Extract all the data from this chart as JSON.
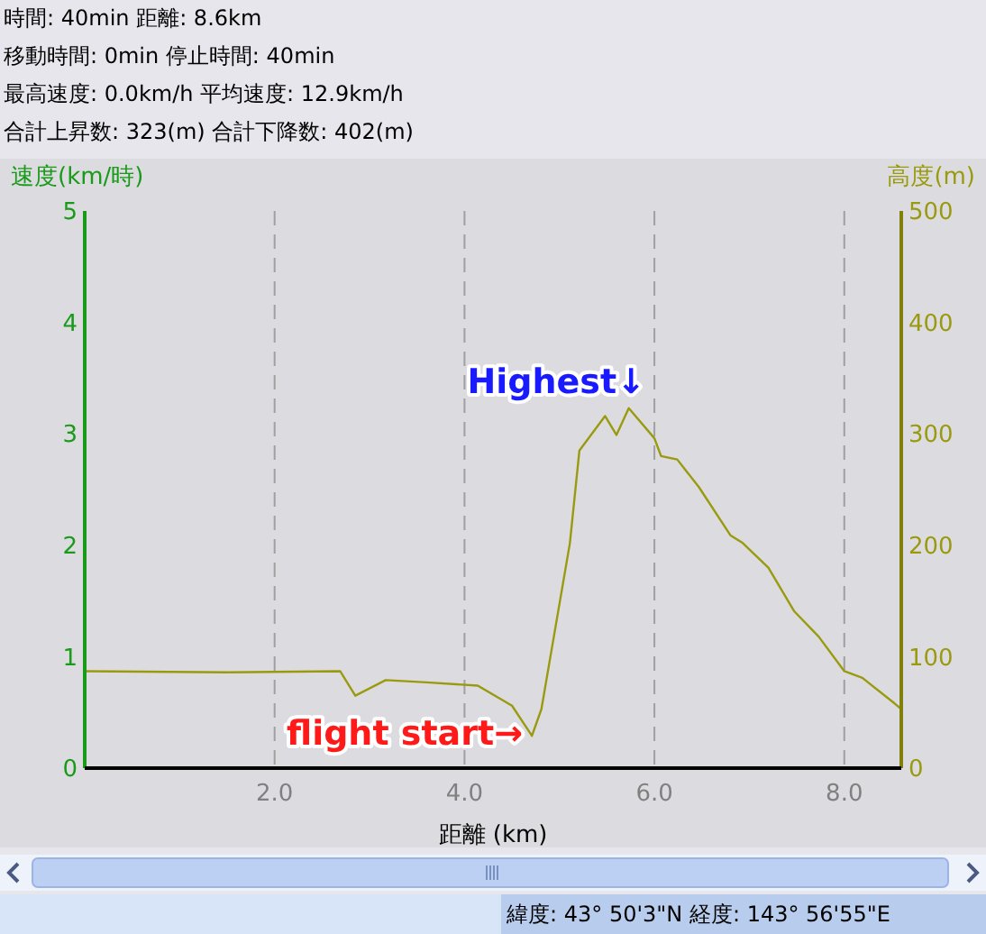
{
  "chart_data": {
    "type": "line",
    "xlabel": "距離 (km)",
    "ylabel": "速度(km/時)",
    "y2label": "高度(m)",
    "annotations": [
      "時間: 40min  距離: 8.6km",
      "移動時間: 0min  停止時間: 40min",
      "最高速度: 0.0km/h  平均速度: 12.9km/h",
      "合計上昇数: 323(m)  合計下降数: 402(m)",
      "Highest↓",
      "flight start→",
      "緯度: 43°  50'3\"N  経度: 143°  56'55\"E"
    ],
    "xlim": [
      0,
      8.6
    ],
    "xticks": [
      {
        "value": 2,
        "label": "2.0"
      },
      {
        "value": 4,
        "label": "4.0"
      },
      {
        "value": 6,
        "label": "6.0"
      },
      {
        "value": 8,
        "label": "8.0"
      }
    ],
    "ylim": [
      0,
      5
    ],
    "yticks": [
      0,
      1,
      2,
      3,
      4,
      5
    ],
    "y2lim": [
      0,
      500
    ],
    "y2ticks": [
      0,
      100,
      200,
      300,
      400,
      500
    ],
    "grid": "x",
    "series": [
      {
        "color": "#9a9a10",
        "axis": "y2",
        "x": [
          0,
          1.5,
          2.69,
          2.85,
          3.17,
          3.6,
          4.14,
          4.5,
          4.71,
          4.81,
          5.11,
          5.21,
          5.48,
          5.6,
          5.73,
          6.0,
          6.07,
          6.24,
          6.47,
          6.8,
          6.93,
          7.2,
          7.47,
          7.73,
          8.0,
          8.19,
          8.53,
          8.6
        ],
        "values": [
          87,
          86,
          87,
          65,
          79,
          77,
          74,
          56,
          29,
          53,
          202,
          285,
          316,
          299,
          323,
          296,
          280,
          277,
          252,
          209,
          202,
          180,
          141,
          118,
          87,
          81,
          58,
          53
        ]
      }
    ]
  }
}
